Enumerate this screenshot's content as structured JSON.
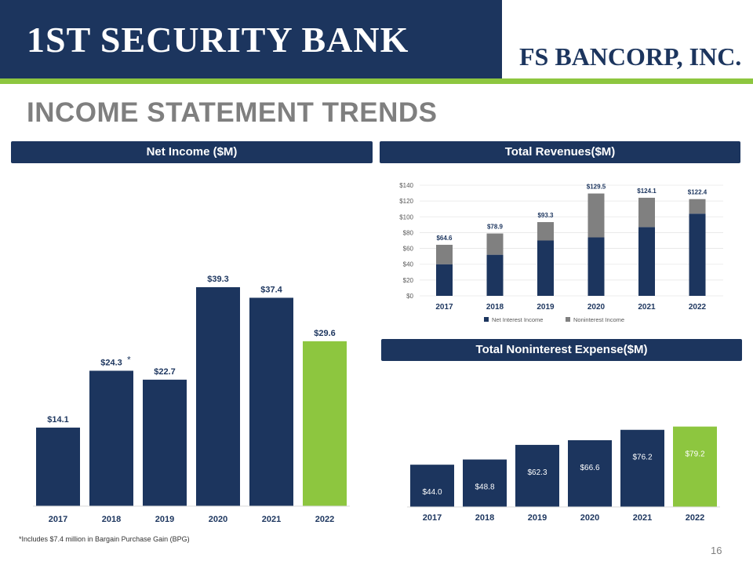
{
  "header": {
    "bank_logo": "1ST SECURITY BANK",
    "parent_logo": "FS BANCORP, INC.",
    "title": "INCOME STATEMENT TRENDS"
  },
  "colors": {
    "navy": "#1c355e",
    "green": "#8dc63f",
    "gray": "#808080"
  },
  "chart_data": [
    {
      "type": "bar",
      "title": "Net Income ($M)",
      "categories": [
        "2017",
        "2018",
        "2019",
        "2020",
        "2021",
        "2022"
      ],
      "values": [
        14.1,
        24.3,
        22.7,
        39.3,
        37.4,
        29.6
      ],
      "labels": [
        "$14.1",
        "$24.3",
        "$22.7",
        "$39.3",
        "$37.4",
        "$29.6"
      ],
      "annotation": "*",
      "highlight_last": true
    },
    {
      "type": "bar",
      "stacked": true,
      "title": "Total Revenues($M)",
      "categories": [
        "2017",
        "2018",
        "2019",
        "2020",
        "2021",
        "2022"
      ],
      "series": [
        {
          "name": "Net Interest Income",
          "values": [
            40,
            52,
            70,
            74,
            87,
            104
          ]
        },
        {
          "name": "Noninterest Income",
          "values": [
            24.6,
            26.9,
            23.3,
            55.5,
            37.1,
            18.4
          ]
        }
      ],
      "totals": [
        64.6,
        78.9,
        93.3,
        129.5,
        124.1,
        122.4
      ],
      "labels": [
        "$64.6",
        "$78.9",
        "$93.3",
        "$129.5",
        "$124.1",
        "$122.4"
      ],
      "yticks": [
        "$0",
        "$20",
        "$40",
        "$60",
        "$80",
        "$100",
        "$120",
        "$140"
      ],
      "ylim": [
        0,
        140
      ],
      "grid": true,
      "legend": "bottom"
    },
    {
      "type": "bar",
      "title": "Total Noninterest Expense($M)",
      "categories": [
        "2017",
        "2018",
        "2019",
        "2020",
        "2021",
        "2022"
      ],
      "values": [
        44.0,
        48.8,
        62.3,
        66.6,
        76.2,
        79.2
      ],
      "labels": [
        "$44.0",
        "$48.8",
        "$62.3",
        "$66.6",
        "$76.2",
        "$79.2"
      ],
      "highlight_last": true
    }
  ],
  "footnote": "*Includes $7.4 million in Bargain Purchase Gain (BPG)",
  "page_number": "16"
}
